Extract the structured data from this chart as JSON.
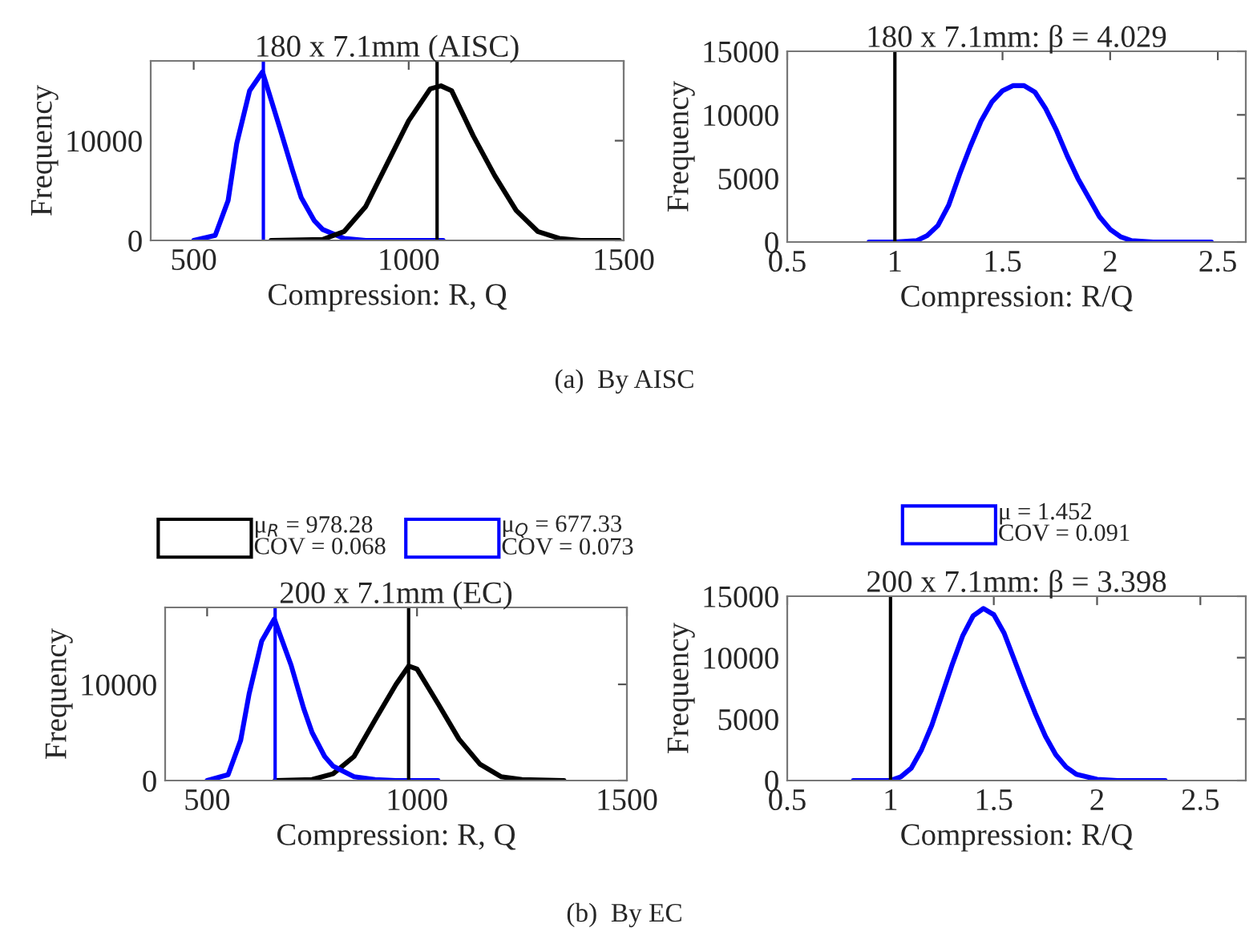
{
  "chart_data": [
    {
      "type": "line",
      "title": "180 x 7.1mm (AISC)",
      "xlabel": "Compression: R, Q",
      "ylabel": "Frequency",
      "xlim": [
        400,
        1500
      ],
      "xticks": [
        500,
        1000,
        1500
      ],
      "ylim": [
        0,
        18000
      ],
      "yticks": [
        0,
        10000
      ],
      "grid": false,
      "legend": false,
      "annotations": [
        "(a)  By AISC"
      ],
      "ref_lines": [
        {
          "axis": "x",
          "value": 662,
          "color": "#0000ff"
        },
        {
          "axis": "x",
          "value": 1066,
          "color": "#000000"
        }
      ],
      "series": [
        {
          "color": "#0000ff",
          "x": [
            500,
            550,
            580,
            600,
            630,
            660,
            700,
            730,
            750,
            780,
            800,
            850,
            900,
            1000,
            1080
          ],
          "values": [
            0,
            500,
            4000,
            9700,
            15000,
            16900,
            11300,
            7000,
            4300,
            2000,
            1100,
            200,
            0,
            0,
            0
          ]
        },
        {
          "color": "#000000",
          "x": [
            680,
            800,
            850,
            900,
            950,
            1000,
            1050,
            1075,
            1100,
            1150,
            1200,
            1250,
            1300,
            1350,
            1400,
            1490
          ],
          "values": [
            0,
            100,
            900,
            3400,
            7700,
            12000,
            15200,
            15500,
            15000,
            10500,
            6500,
            3000,
            900,
            200,
            0,
            0
          ]
        }
      ]
    },
    {
      "type": "line",
      "title": "180 x 7.1mm: β = 4.029",
      "xlabel": "Compression: R/Q",
      "ylabel": "Frequency",
      "xlim": [
        0.5,
        2.63
      ],
      "xticks": [
        0.5,
        1,
        1.5,
        2,
        2.5
      ],
      "ylim": [
        0,
        15000
      ],
      "yticks": [
        0,
        5000,
        10000,
        15000
      ],
      "grid": false,
      "legend": false,
      "ref_lines": [
        {
          "axis": "x",
          "value": 1.0,
          "color": "#000000"
        }
      ],
      "series": [
        {
          "color": "#0000ff",
          "x": [
            0.88,
            1.0,
            1.1,
            1.15,
            1.2,
            1.25,
            1.3,
            1.35,
            1.4,
            1.45,
            1.5,
            1.55,
            1.6,
            1.65,
            1.7,
            1.75,
            1.8,
            1.85,
            1.9,
            1.95,
            2.0,
            2.05,
            2.1,
            2.2,
            2.47
          ],
          "values": [
            0,
            0,
            100,
            500,
            1300,
            2900,
            5300,
            7500,
            9500,
            11000,
            11900,
            12300,
            12300,
            11800,
            10500,
            8800,
            6800,
            5000,
            3500,
            2000,
            1000,
            400,
            100,
            0,
            0
          ]
        }
      ]
    },
    {
      "type": "line",
      "title": "200 x 7.1mm (EC)",
      "xlabel": "Compression: R, Q",
      "ylabel": "Frequency",
      "xlim": [
        400,
        1500
      ],
      "xticks": [
        500,
        1000,
        1500
      ],
      "ylim": [
        0,
        18000
      ],
      "yticks": [
        0,
        10000
      ],
      "grid": false,
      "legend": "top",
      "annotations": [
        "(b)  By EC"
      ],
      "ref_lines": [
        {
          "axis": "x",
          "value": 662,
          "color": "#0000ff"
        },
        {
          "axis": "x",
          "value": 980,
          "color": "#000000"
        }
      ],
      "series": [
        {
          "name": "μ$_{R}$ = 978.28\nCOV = 0.068",
          "color": "#000000",
          "x": [
            662,
            750,
            800,
            850,
            900,
            950,
            980,
            1000,
            1050,
            1100,
            1150,
            1200,
            1250,
            1350
          ],
          "values": [
            0,
            100,
            700,
            2500,
            6300,
            10000,
            11900,
            11600,
            8000,
            4300,
            1700,
            400,
            100,
            0
          ]
        },
        {
          "name": "μ$_{Q}$ = 677.33\nCOV = 0.073",
          "color": "#0000ff",
          "x": [
            500,
            550,
            580,
            600,
            630,
            660,
            700,
            730,
            750,
            780,
            800,
            850,
            900,
            950,
            1050
          ],
          "values": [
            0,
            600,
            4200,
            9000,
            14500,
            16800,
            12000,
            7500,
            5000,
            2500,
            1500,
            400,
            100,
            0,
            0
          ]
        }
      ]
    },
    {
      "type": "line",
      "title": "200 x 7.1mm: β = 3.398",
      "xlabel": "Compression: R/Q",
      "ylabel": "Frequency",
      "xlim": [
        0.5,
        2.72
      ],
      "xticks": [
        0.5,
        1,
        1.5,
        2,
        2.5
      ],
      "ylim": [
        0,
        15000
      ],
      "yticks": [
        0,
        5000,
        10000,
        15000
      ],
      "grid": false,
      "legend": "top",
      "ref_lines": [
        {
          "axis": "x",
          "value": 1.0,
          "color": "#000000"
        }
      ],
      "series": [
        {
          "name": "μ = 1.452\nCOV = 0.091",
          "color": "#0000ff",
          "x": [
            0.82,
            1.0,
            1.05,
            1.1,
            1.15,
            1.2,
            1.25,
            1.3,
            1.35,
            1.4,
            1.45,
            1.5,
            1.55,
            1.6,
            1.65,
            1.7,
            1.75,
            1.8,
            1.85,
            1.9,
            2.0,
            2.1,
            2.33
          ],
          "values": [
            0,
            0,
            300,
            1000,
            2500,
            4500,
            7000,
            9500,
            11800,
            13400,
            14000,
            13500,
            12000,
            9800,
            7600,
            5500,
            3600,
            2100,
            1100,
            500,
            100,
            0,
            0
          ]
        }
      ]
    }
  ]
}
